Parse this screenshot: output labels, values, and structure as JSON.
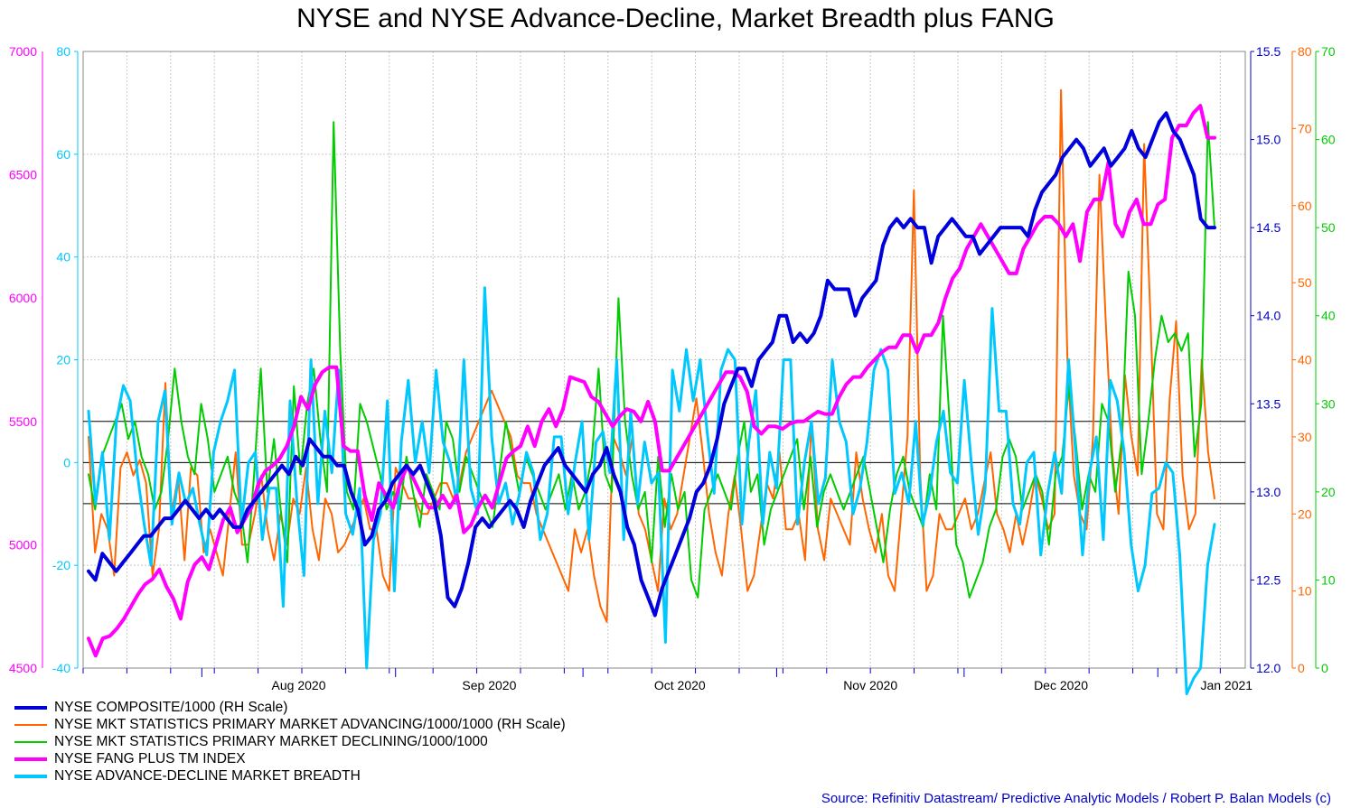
{
  "chart_data": {
    "type": "line",
    "title": "NYSE and NYSE Advance-Decline, Market Breadth plus FANG",
    "x_tick_labels": [
      "Aug 2020",
      "Sep 2020",
      "Oct 2020",
      "Nov 2020",
      "Dec 2020",
      "Jan 2021"
    ],
    "x_range": [
      "2020-07-13",
      "2021-01-15"
    ],
    "axes": {
      "fang": {
        "side": "left-outer",
        "color": "#ff00ff",
        "range": [
          4500,
          7000
        ],
        "ticks": [
          4500,
          5000,
          5500,
          6000,
          6500,
          7000
        ]
      },
      "breadth": {
        "side": "left-inner",
        "color": "#00c8ff",
        "range": [
          -40,
          80
        ],
        "ticks": [
          -40,
          -20,
          0,
          20,
          40,
          60,
          80
        ]
      },
      "nyse": {
        "side": "right-inner",
        "color": "#0000cc",
        "range": [
          12.0,
          15.5
        ],
        "ticks": [
          "12.0",
          "12.5",
          "13.0",
          "13.5",
          "14.0",
          "14.5",
          "15.0",
          "15.5"
        ]
      },
      "adv": {
        "side": "right-mid",
        "color": "#ff6600",
        "range": [
          0,
          80
        ],
        "ticks": [
          0,
          10,
          20,
          30,
          40,
          50,
          60,
          70,
          80
        ]
      },
      "dec": {
        "side": "right-outer",
        "color": "#00cc00",
        "range": [
          0,
          70
        ],
        "ticks": [
          0,
          10,
          20,
          30,
          40,
          50,
          60,
          70
        ]
      }
    },
    "reference_lines": {
      "axis": "breadth",
      "values": [
        -8,
        0,
        8
      ]
    },
    "grid": true,
    "series": [
      {
        "key": "nyse",
        "name": "NYSE COMPOSITE/1000 (RH Scale)",
        "color": "#0000dd",
        "width": 4,
        "values": [
          12.55,
          12.5,
          12.65,
          12.6,
          12.55,
          12.6,
          12.65,
          12.7,
          12.75,
          12.75,
          12.8,
          12.85,
          12.85,
          12.9,
          12.95,
          12.9,
          12.85,
          12.9,
          12.85,
          12.9,
          12.85,
          12.8,
          12.8,
          12.9,
          12.95,
          13.0,
          13.05,
          13.1,
          13.15,
          13.1,
          13.2,
          13.15,
          13.3,
          13.25,
          13.2,
          13.2,
          13.15,
          13.15,
          13.0,
          12.9,
          12.7,
          12.75,
          12.9,
          12.95,
          13.05,
          13.1,
          13.15,
          13.1,
          13.15,
          13.05,
          12.95,
          12.75,
          12.4,
          12.35,
          12.45,
          12.6,
          12.8,
          12.85,
          12.8,
          12.85,
          12.9,
          12.95,
          12.9,
          12.8,
          12.95,
          13.05,
          13.15,
          13.2,
          13.25,
          13.15,
          13.1,
          13.05,
          13.0,
          13.1,
          13.15,
          13.25,
          13.1,
          13.0,
          12.8,
          12.7,
          12.5,
          12.4,
          12.3,
          12.45,
          12.55,
          12.65,
          12.75,
          12.85,
          13.0,
          13.05,
          13.15,
          13.3,
          13.5,
          13.6,
          13.7,
          13.7,
          13.6,
          13.75,
          13.8,
          13.85,
          14.0,
          14.0,
          13.85,
          13.9,
          13.85,
          13.9,
          14.0,
          14.2,
          14.15,
          14.15,
          14.15,
          14.0,
          14.1,
          14.15,
          14.2,
          14.4,
          14.5,
          14.55,
          14.5,
          14.55,
          14.5,
          14.5,
          14.3,
          14.45,
          14.5,
          14.55,
          14.5,
          14.45,
          14.45,
          14.35,
          14.4,
          14.45,
          14.5,
          14.5,
          14.5,
          14.5,
          14.45,
          14.6,
          14.7,
          14.75,
          14.8,
          14.9,
          14.95,
          15.0,
          14.95,
          14.85,
          14.9,
          14.95,
          14.85,
          14.9,
          14.95,
          15.05,
          14.95,
          14.9,
          15.0,
          15.1,
          15.15,
          15.05,
          15.0,
          14.9,
          14.8,
          14.55,
          14.5,
          14.5
        ]
      },
      {
        "key": "adv",
        "name": "NYSE MKT STATISTICS PRIMARY MARKET ADVANCING/1000/1000 (RH Scale)",
        "color": "#ff6600",
        "width": 2,
        "values": [
          30,
          15,
          20,
          18,
          12,
          26,
          28,
          25,
          27,
          24,
          12,
          18,
          37,
          20,
          25,
          14,
          26,
          25,
          15,
          18,
          15,
          12,
          20,
          28,
          16,
          16,
          20,
          25,
          18,
          14,
          20,
          16,
          22,
          20,
          26,
          18,
          14,
          22,
          20,
          15,
          16,
          18,
          20,
          22,
          18,
          18,
          12,
          10,
          26,
          24,
          22,
          22,
          20,
          20,
          22,
          24,
          24,
          22,
          24,
          28,
          30,
          32,
          34,
          36,
          34,
          32,
          30,
          25,
          24,
          24,
          20,
          18,
          16,
          14,
          12,
          10,
          18,
          15,
          18,
          12,
          8,
          6,
          30,
          28,
          25,
          30,
          20,
          18,
          14,
          10,
          22,
          18,
          20,
          25,
          30,
          35,
          28,
          20,
          15,
          12,
          20,
          25,
          18,
          10,
          12,
          18,
          24,
          22,
          28,
          18,
          18,
          20,
          14,
          32,
          18,
          14,
          22,
          20,
          18,
          16,
          28,
          22,
          18,
          15,
          20,
          12,
          10,
          20,
          30,
          62,
          25,
          10,
          12,
          20,
          18,
          18,
          20,
          22,
          18,
          20,
          24,
          28,
          20,
          18,
          15,
          20,
          16,
          20,
          25,
          22,
          18,
          20,
          75,
          40,
          25,
          20,
          18,
          30,
          64,
          45,
          28,
          20,
          38,
          30,
          25,
          68,
          45,
          20,
          18,
          35,
          45,
          25,
          18,
          20,
          40,
          28,
          22
        ]
      },
      {
        "key": "dec",
        "name": "NYSE MKT STATISTICS PRIMARY MARKET DECLINING/1000/1000",
        "color": "#00cc00",
        "width": 2,
        "values": [
          22,
          18,
          24,
          26,
          28,
          30,
          26,
          28,
          24,
          22,
          18,
          20,
          26,
          34,
          28,
          24,
          22,
          30,
          26,
          20,
          22,
          24,
          20,
          18,
          12,
          22,
          34,
          20,
          26,
          18,
          12,
          32,
          22,
          30,
          34,
          26,
          20,
          62,
          36,
          20,
          18,
          30,
          28,
          25,
          22,
          18,
          20,
          18,
          24,
          20,
          16,
          22,
          20,
          18,
          28,
          26,
          20,
          24,
          22,
          20,
          18,
          16,
          22,
          28,
          24,
          20,
          24,
          22,
          20,
          18,
          20,
          22,
          18,
          22,
          18,
          20,
          24,
          34,
          22,
          20,
          42,
          28,
          22,
          18,
          20,
          12,
          24,
          16,
          22,
          18,
          20,
          10,
          8,
          18,
          20,
          22,
          20,
          18,
          24,
          28,
          20,
          22,
          14,
          18,
          20,
          22,
          24,
          26,
          18,
          24,
          16,
          20,
          22,
          20,
          18,
          20,
          22,
          24,
          20,
          16,
          12,
          18,
          22,
          24,
          20,
          18,
          16,
          22,
          18,
          40,
          28,
          14,
          12,
          8,
          10,
          12,
          16,
          18,
          24,
          26,
          24,
          18,
          20,
          22,
          20,
          14,
          22,
          24,
          32,
          26,
          18,
          22,
          20,
          30,
          28,
          20,
          26,
          45,
          40,
          22,
          28,
          35,
          40,
          37,
          38,
          36,
          38,
          24,
          30,
          62,
          50
        ]
      },
      {
        "key": "fang",
        "name": "NYSE FANG PLUS TM INDEX",
        "color": "#ff00ff",
        "width": 4,
        "values": [
          4620,
          4550,
          4620,
          4630,
          4660,
          4700,
          4750,
          4800,
          4840,
          4860,
          4900,
          4830,
          4780,
          4700,
          4850,
          4920,
          4950,
          4900,
          5000,
          5100,
          5150,
          5050,
          5100,
          5150,
          5250,
          5300,
          5320,
          5350,
          5400,
          5480,
          5600,
          5550,
          5650,
          5700,
          5720,
          5720,
          5400,
          5380,
          5380,
          5200,
          5100,
          5250,
          5200,
          5150,
          5250,
          5320,
          5260,
          5200,
          5150,
          5150,
          5200,
          5150,
          5200,
          5050,
          5080,
          5150,
          5200,
          5150,
          5250,
          5350,
          5380,
          5400,
          5480,
          5400,
          5500,
          5550,
          5480,
          5550,
          5680,
          5670,
          5660,
          5600,
          5580,
          5530,
          5480,
          5520,
          5550,
          5540,
          5500,
          5580,
          5500,
          5300,
          5300,
          5350,
          5400,
          5450,
          5500,
          5550,
          5600,
          5650,
          5700,
          5700,
          5680,
          5620,
          5480,
          5450,
          5480,
          5480,
          5470,
          5490,
          5500,
          5500,
          5520,
          5540,
          5530,
          5530,
          5600,
          5650,
          5680,
          5680,
          5720,
          5750,
          5780,
          5800,
          5800,
          5850,
          5850,
          5780,
          5850,
          5850,
          5900,
          6000,
          6080,
          6120,
          6200,
          6250,
          6300,
          6250,
          6200,
          6150,
          6100,
          6100,
          6200,
          6250,
          6300,
          6330,
          6330,
          6300,
          6250,
          6300,
          6150,
          6350,
          6400,
          6400,
          6550,
          6300,
          6250,
          6350,
          6400,
          6300,
          6300,
          6380,
          6400,
          6650,
          6700,
          6700,
          6750,
          6780,
          6650,
          6650
        ]
      },
      {
        "key": "breadth",
        "name": "NYSE ADVANCE-DECLINE MARKET BREADTH",
        "color": "#00c8ff",
        "width": 3,
        "values": [
          10,
          -8,
          2,
          -15,
          8,
          15,
          12,
          -2,
          -12,
          -20,
          8,
          14,
          -12,
          -2,
          -8,
          -5,
          -12,
          -18,
          2,
          8,
          12,
          18,
          -12,
          0,
          2,
          -15,
          -5,
          -5,
          -28,
          12,
          -8,
          -22,
          20,
          -8,
          10,
          -2,
          18,
          -10,
          -14,
          -5,
          -40,
          -15,
          -10,
          12,
          -25,
          4,
          16,
          0,
          8,
          -2,
          18,
          4,
          0,
          -8,
          20,
          -5,
          -10,
          34,
          5,
          -8,
          -4,
          -12,
          -6,
          2,
          -2,
          -15,
          -10,
          5,
          5,
          -10,
          0,
          8,
          -15,
          4,
          6,
          -2,
          20,
          -15,
          10,
          -8,
          4,
          -4,
          -2,
          -35,
          18,
          10,
          22,
          12,
          20,
          6,
          -6,
          18,
          22,
          20,
          -12,
          4,
          14,
          -12,
          2,
          -5,
          20,
          20,
          -12,
          0,
          8,
          -8,
          -3,
          20,
          8,
          4,
          -10,
          -5,
          4,
          18,
          22,
          18,
          -6,
          -2,
          -8,
          8,
          -12,
          -6,
          4,
          10,
          -2,
          -4,
          16,
          0,
          -14,
          -5,
          30,
          10,
          10,
          -8,
          -12,
          0,
          2,
          -18,
          -6,
          2,
          -6,
          20,
          2,
          -18,
          -2,
          5,
          -15,
          16,
          12,
          2,
          -16,
          -25,
          -20,
          -6,
          -5,
          0,
          -2,
          -18,
          -45,
          -42,
          -40,
          -20,
          -12
        ]
      }
    ]
  },
  "source": "Source: Refinitiv Datastream/ Predictive Analytic Models / Robert P. Balan Models (c)"
}
